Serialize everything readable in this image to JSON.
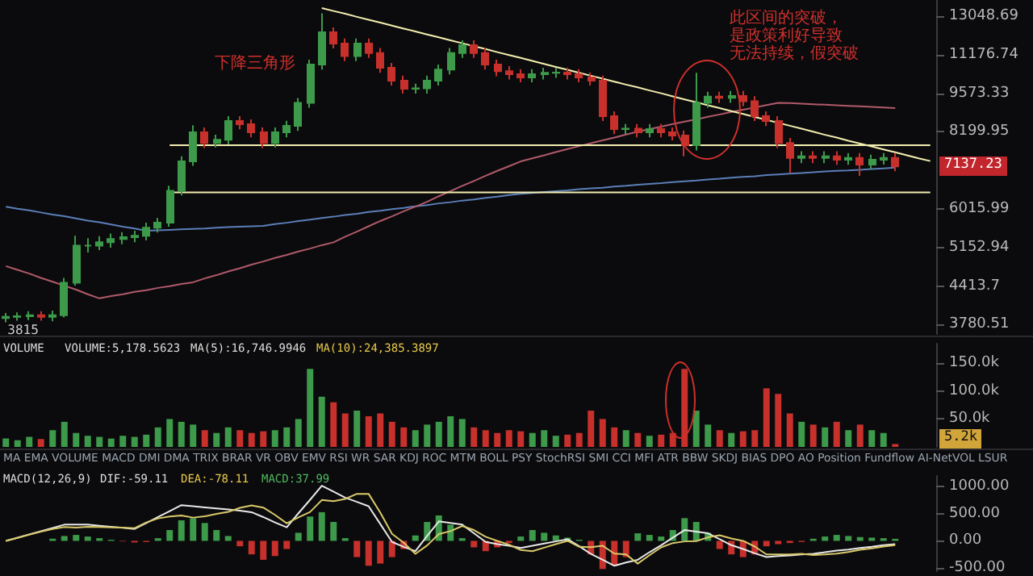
{
  "chart_data": [
    {
      "type": "candlestick",
      "log": "y",
      "tick_labels": "y",
      "categories": [
        null,
        null,
        null,
        null,
        null,
        null,
        null,
        null,
        null,
        null,
        null,
        null,
        null,
        null,
        null,
        null,
        null,
        null,
        null,
        null,
        null,
        null,
        null,
        null,
        null,
        null,
        null,
        null,
        null,
        null,
        null,
        null,
        null,
        null,
        null,
        null,
        null,
        null,
        null,
        null,
        null,
        null,
        null,
        null,
        null,
        null,
        null,
        null,
        null,
        null,
        null,
        null,
        null,
        null,
        null,
        null,
        null,
        null,
        null,
        null,
        null,
        null,
        null,
        null,
        null,
        null,
        null,
        null,
        null,
        null,
        null,
        null,
        null,
        null,
        null,
        null,
        null,
        null,
        null,
        null
      ],
      "colors": [
        "#3d9a4a",
        "#3d9a4a",
        "#3d9a4a",
        "#c8302c",
        "#3d9a4a",
        "#3d9a4a",
        "#3d9a4a",
        "#3d9a4a",
        "#3d9a4a",
        "#3d9a4a",
        "#3d9a4a",
        "#3d9a4a",
        "#3d9a4a",
        "#3d9a4a",
        "#3d9a4a",
        "#3d9a4a",
        "#3d9a4a",
        "#c8302c",
        "#3d9a4a",
        "#3d9a4a",
        "#c8302c",
        "#c8302c",
        "#c8302c",
        "#3d9a4a",
        "#3d9a4a",
        "#3d9a4a",
        "#3d9a4a",
        "#3d9a4a",
        "#c8302c",
        "#c8302c",
        "#3d9a4a",
        "#c8302c",
        "#c8302c",
        "#c8302c",
        "#c8302c",
        "#3d9a4a",
        "#3d9a4a",
        "#3d9a4a",
        "#3d9a4a",
        "#3d9a4a",
        "#c8302c",
        "#c8302c",
        "#c8302c",
        "#c8302c",
        "#c8302c",
        "#3d9a4a",
        "#3d9a4a",
        "#3d9a4a",
        "#c8302c",
        "#c8302c",
        "#c8302c",
        "#c8302c",
        "#c8302c",
        "#3d9a4a",
        "#c8302c",
        "#3d9a4a",
        "#c8302c",
        "#c8302c",
        "#c8302c",
        "#3d9a4a",
        "#3d9a4a",
        "#c8302c",
        "#3d9a4a",
        "#c8302c",
        "#c8302c",
        "#c8302c",
        "#c8302c",
        "#c8302c",
        "#3d9a4a",
        "#c8302c",
        "#3d9a4a",
        "#c8302c",
        "#3d9a4a",
        "#c8302c",
        "#3d9a4a",
        "#3d9a4a",
        "#c8302c",
        null,
        null,
        null
      ],
      "ohlc": [
        [
          3880,
          3960,
          3815,
          3900
        ],
        [
          3900,
          3970,
          3840,
          3910
        ],
        [
          3910,
          3990,
          3850,
          3925
        ],
        [
          3925,
          3990,
          3840,
          3900
        ],
        [
          3900,
          4000,
          3830,
          3925
        ],
        [
          3925,
          4560,
          3890,
          4470
        ],
        [
          4470,
          5400,
          4420,
          5190
        ],
        [
          5190,
          5350,
          5050,
          5190
        ],
        [
          5190,
          5390,
          5100,
          5260
        ],
        [
          5260,
          5450,
          5150,
          5330
        ],
        [
          5330,
          5480,
          5220,
          5370
        ],
        [
          5370,
          5510,
          5260,
          5400
        ],
        [
          5400,
          5690,
          5300,
          5580
        ],
        [
          5580,
          5800,
          5470,
          5690
        ],
        [
          5690,
          6600,
          5600,
          6470
        ],
        [
          6470,
          7430,
          6350,
          7280
        ],
        [
          7280,
          8420,
          7150,
          8180
        ],
        [
          8180,
          8340,
          7680,
          7840
        ],
        [
          7840,
          8100,
          7700,
          7940
        ],
        [
          7940,
          8730,
          7800,
          8560
        ],
        [
          8560,
          8730,
          8280,
          8450
        ],
        [
          8450,
          8620,
          8020,
          8180
        ],
        [
          8180,
          8340,
          7680,
          7840
        ],
        [
          7840,
          8340,
          7700,
          8180
        ],
        [
          8180,
          8570,
          8020,
          8400
        ],
        [
          8400,
          9390,
          8230,
          9210
        ],
        [
          9210,
          10950,
          9030,
          10740
        ],
        [
          10740,
          13200,
          10530,
          12230
        ],
        [
          12230,
          12470,
          11460,
          11690
        ],
        [
          11690,
          11920,
          10890,
          11110
        ],
        [
          11110,
          11920,
          10890,
          11690
        ],
        [
          11690,
          11920,
          11030,
          11250
        ],
        [
          11250,
          11480,
          10390,
          10600
        ],
        [
          10600,
          10810,
          9870,
          10070
        ],
        [
          10070,
          10270,
          9560,
          9750
        ],
        [
          9750,
          9950,
          9560,
          9760
        ],
        [
          9760,
          10270,
          9560,
          10070
        ],
        [
          10070,
          10740,
          9870,
          10530
        ],
        [
          10530,
          11480,
          10320,
          11250
        ],
        [
          11250,
          11840,
          11030,
          11610
        ],
        [
          11610,
          11840,
          11030,
          11250
        ],
        [
          11250,
          11480,
          10530,
          10740
        ],
        [
          10740,
          10950,
          10250,
          10460
        ],
        [
          10460,
          10670,
          10120,
          10330
        ],
        [
          10330,
          10540,
          10000,
          10200
        ],
        [
          10200,
          10540,
          10000,
          10330
        ],
        [
          10330,
          10600,
          10120,
          10390
        ],
        [
          10390,
          10600,
          10180,
          10400
        ],
        [
          10400,
          10600,
          10120,
          10330
        ],
        [
          10330,
          10540,
          10000,
          10200
        ],
        [
          10200,
          10400,
          9870,
          10070
        ],
        [
          10070,
          10270,
          8560,
          8730
        ],
        [
          8730,
          8900,
          8120,
          8290
        ],
        [
          8290,
          8460,
          8120,
          8300
        ],
        [
          8300,
          8460,
          8020,
          8180
        ],
        [
          8180,
          8460,
          8020,
          8290
        ],
        [
          8290,
          8460,
          8020,
          8180
        ],
        [
          8180,
          8340,
          7920,
          8080
        ],
        [
          8080,
          8240,
          7430,
          7770
        ],
        [
          7770,
          10390,
          7610,
          9210
        ],
        [
          9210,
          9630,
          9030,
          9440
        ],
        [
          9440,
          9630,
          9210,
          9400
        ],
        [
          9400,
          9660,
          9210,
          9470
        ],
        [
          9470,
          9660,
          9080,
          9270
        ],
        [
          9270,
          9460,
          8560,
          8730
        ],
        [
          8730,
          8900,
          8390,
          8560
        ],
        [
          8560,
          8730,
          7680,
          7840
        ],
        [
          7840,
          8000,
          6950,
          7380
        ],
        [
          7380,
          7580,
          7230,
          7430
        ],
        [
          7430,
          7580,
          7230,
          7380
        ],
        [
          7380,
          7580,
          7230,
          7430
        ],
        [
          7430,
          7580,
          7180,
          7330
        ],
        [
          7330,
          7530,
          7180,
          7380
        ],
        [
          7380,
          7530,
          6870,
          7190
        ],
        [
          7190,
          7480,
          7050,
          7330
        ],
        [
          7330,
          7530,
          7190,
          7380
        ],
        [
          7380,
          7530,
          7000,
          7137
        ],
        null,
        null,
        null
      ],
      "series": [
        {
          "type": "line",
          "color": "#5b7fb8",
          "values": [
            6070,
            6020,
            5980,
            5930,
            5880,
            5840,
            5790,
            5740,
            5700,
            5650,
            5600,
            5560,
            5510,
            5520,
            5530,
            5540,
            5550,
            5560,
            5580,
            5590,
            5600,
            5610,
            5620,
            5660,
            5690,
            5730,
            5760,
            5800,
            5830,
            5870,
            5900,
            5940,
            5970,
            6010,
            6040,
            6080,
            6110,
            6150,
            6180,
            6220,
            6250,
            6290,
            6320,
            6360,
            6390,
            6410,
            6440,
            6460,
            6480,
            6510,
            6530,
            6550,
            6580,
            6600,
            6630,
            6650,
            6670,
            6700,
            6720,
            6740,
            6770,
            6790,
            6820,
            6840,
            6860,
            6890,
            6910,
            6930,
            6950,
            6970,
            6990,
            7010,
            7020,
            7040,
            7060,
            7080,
            7100,
            null,
            null,
            null
          ]
        },
        {
          "type": "line",
          "color": "#b05a6a",
          "values": [
            4780,
            4710,
            4640,
            4560,
            4490,
            4420,
            4350,
            4270,
            4200,
            4240,
            4270,
            4310,
            4340,
            4380,
            4410,
            4450,
            4480,
            4550,
            4610,
            4680,
            4740,
            4810,
            4870,
            4940,
            5000,
            5070,
            5130,
            5200,
            5260,
            5380,
            5490,
            5610,
            5730,
            5840,
            5960,
            6070,
            6190,
            6330,
            6460,
            6600,
            6730,
            6870,
            7010,
            7140,
            7280,
            7370,
            7460,
            7560,
            7650,
            7740,
            7830,
            7920,
            8010,
            8110,
            8200,
            8290,
            8370,
            8460,
            8540,
            8620,
            8710,
            8790,
            8880,
            8960,
            9040,
            9130,
            9210,
            9200,
            9180,
            9160,
            9140,
            9120,
            9100,
            9080,
            9060,
            9040,
            9020,
            null,
            null,
            null
          ]
        },
        {
          "type": "line",
          "color": "#f3eeb0",
          "values": [
            null,
            null,
            null,
            null,
            null,
            null,
            null,
            null,
            null,
            null,
            null,
            null,
            null,
            null,
            null,
            null,
            null,
            null,
            null,
            null,
            null,
            null,
            null,
            null,
            null,
            null,
            null,
            13480,
            13320,
            13170,
            13010,
            12860,
            12710,
            12560,
            12410,
            12270,
            12120,
            11980,
            11840,
            11700,
            11560,
            11430,
            11290,
            11160,
            11030,
            10900,
            10770,
            10640,
            10520,
            10390,
            10270,
            10150,
            10030,
            9910,
            9800,
            9680,
            9570,
            9450,
            9340,
            9230,
            9120,
            9020,
            8910,
            8810,
            8700,
            8600,
            8500,
            8400,
            8300,
            8200,
            8100,
            8010,
            7910,
            7820,
            7730,
            7640,
            7550,
            7460,
            7370,
            7290
          ]
        },
        {
          "type": "line",
          "color": "#f3eeb0",
          "values": [
            null,
            null,
            null,
            null,
            null,
            null,
            null,
            null,
            null,
            null,
            null,
            null,
            null,
            null,
            7770,
            7770,
            7770,
            7770,
            7770,
            7770,
            7770,
            7770,
            7770,
            7770,
            7770,
            7770,
            7770,
            7770,
            7770,
            7770,
            7770,
            7770,
            7770,
            7770,
            7770,
            7770,
            7770,
            7770,
            7770,
            7770,
            7770,
            7770,
            7770,
            7770,
            7770,
            7770,
            7770,
            7770,
            7770,
            7770,
            7770,
            7770,
            7770,
            7770,
            7770,
            7770,
            7770,
            7770,
            7770,
            7770,
            7770,
            7770,
            7770,
            7770,
            7770,
            7770,
            7770,
            7770,
            7770,
            7770,
            7770,
            7770,
            7770,
            7770,
            7770,
            7770,
            7770,
            7770,
            7770,
            7770
          ]
        },
        {
          "type": "line",
          "color": "#f3eeb0",
          "values": [
            null,
            null,
            null,
            null,
            null,
            null,
            null,
            null,
            null,
            null,
            null,
            null,
            null,
            null,
            6430,
            6430,
            6430,
            6430,
            6430,
            6430,
            6430,
            6430,
            6430,
            6430,
            6430,
            6430,
            6430,
            6430,
            6430,
            6430,
            6430,
            6430,
            6430,
            6430,
            6430,
            6430,
            6430,
            6430,
            6430,
            6430,
            6430,
            6430,
            6430,
            6430,
            6430,
            6430,
            6430,
            6430,
            6430,
            6430,
            6430,
            6430,
            6430,
            6430,
            6430,
            6430,
            6430,
            6430,
            6430,
            6430,
            6430,
            6430,
            6430,
            6430,
            6430,
            6430,
            6430,
            6430,
            6430,
            6430,
            6430,
            6430,
            6430,
            6430,
            6430,
            6430,
            6430,
            6430,
            6430,
            6430
          ]
        }
      ],
      "ylim": [
        3640,
        13920
      ],
      "yticks": [
        3780.51,
        4413.7,
        5152.94,
        6015.99,
        8199.95,
        9573.33,
        11176.74,
        13048.69
      ],
      "annotations": [
        "下降三角形",
        "此区间的突破，",
        "是政策利好导致",
        "无法持续，假突破",
        {
          "text": "3815",
          "y": 3815
        },
        "7137.23"
      ]
    },
    {
      "type": "bar",
      "tick_labels": "y",
      "categories": [
        null,
        null,
        null,
        null,
        null,
        null,
        null,
        null,
        null,
        null,
        null,
        null,
        null,
        null,
        null,
        null,
        null,
        null,
        null,
        null,
        null,
        null,
        null,
        null,
        null,
        null,
        null,
        null,
        null,
        null,
        null,
        null,
        null,
        null,
        null,
        null,
        null,
        null,
        null,
        null,
        null,
        null,
        null,
        null,
        null,
        null,
        null,
        null,
        null,
        null,
        null,
        null,
        null,
        null,
        null,
        null,
        null,
        null,
        null,
        null,
        null,
        null,
        null,
        null,
        null,
        null,
        null,
        null,
        null,
        null,
        null,
        null,
        null,
        null,
        null,
        null,
        null,
        null,
        null,
        null
      ],
      "values": [
        15,
        12,
        18,
        14,
        30,
        45,
        25,
        20,
        18,
        15,
        20,
        18,
        22,
        35,
        50,
        45,
        40,
        30,
        25,
        35,
        30,
        25,
        28,
        30,
        35,
        50,
        140,
        90,
        80,
        60,
        65,
        55,
        60,
        45,
        35,
        30,
        40,
        45,
        55,
        50,
        35,
        30,
        25,
        30,
        28,
        25,
        30,
        20,
        22,
        25,
        65,
        50,
        35,
        30,
        25,
        20,
        22,
        25,
        140,
        65,
        40,
        30,
        25,
        28,
        30,
        105,
        95,
        60,
        45,
        40,
        35,
        45,
        30,
        40,
        30,
        25,
        5.2,
        null,
        null,
        null
      ],
      "colors": [
        "#3d9a4a",
        "#3d9a4a",
        "#3d9a4a",
        "#c8302c",
        "#3d9a4a",
        "#3d9a4a",
        "#3d9a4a",
        "#3d9a4a",
        "#3d9a4a",
        "#3d9a4a",
        "#3d9a4a",
        "#3d9a4a",
        "#3d9a4a",
        "#3d9a4a",
        "#3d9a4a",
        "#3d9a4a",
        "#3d9a4a",
        "#c8302c",
        "#3d9a4a",
        "#3d9a4a",
        "#c8302c",
        "#c8302c",
        "#c8302c",
        "#3d9a4a",
        "#3d9a4a",
        "#3d9a4a",
        "#3d9a4a",
        "#3d9a4a",
        "#c8302c",
        "#c8302c",
        "#3d9a4a",
        "#c8302c",
        "#c8302c",
        "#c8302c",
        "#c8302c",
        "#3d9a4a",
        "#3d9a4a",
        "#3d9a4a",
        "#3d9a4a",
        "#3d9a4a",
        "#c8302c",
        "#c8302c",
        "#c8302c",
        "#c8302c",
        "#c8302c",
        "#3d9a4a",
        "#3d9a4a",
        "#3d9a4a",
        "#c8302c",
        "#c8302c",
        "#c8302c",
        "#c8302c",
        "#c8302c",
        "#3d9a4a",
        "#c8302c",
        "#3d9a4a",
        "#c8302c",
        "#c8302c",
        "#c8302c",
        "#3d9a4a",
        "#3d9a4a",
        "#c8302c",
        "#3d9a4a",
        "#c8302c",
        "#c8302c",
        "#c8302c",
        "#c8302c",
        "#c8302c",
        "#3d9a4a",
        "#c8302c",
        "#3d9a4a",
        "#c8302c",
        "#3d9a4a",
        "#c8302c",
        "#3d9a4a",
        "#3d9a4a",
        "#c8302c",
        null,
        null,
        null
      ],
      "ylim": [
        0,
        185
      ],
      "yticks": [
        {
          "value": 50,
          "label": "50.0k"
        },
        {
          "value": 100,
          "label": "100.0k"
        },
        {
          "value": 150,
          "label": "150.0k"
        }
      ],
      "annotations": [
        "VOLUME",
        "VOLUME:5,178.5623",
        "MA(5):16,746.9946",
        "MA(10):24,385.3897",
        "5.2k"
      ]
    },
    {
      "type": "bar",
      "tick_labels": "y",
      "categories": [
        null,
        null,
        null,
        null,
        null,
        null,
        null,
        null,
        null,
        null,
        null,
        null,
        null,
        null,
        null,
        null,
        null,
        null,
        null,
        null,
        null,
        null,
        null,
        null,
        null,
        null,
        null,
        null,
        null,
        null,
        null,
        null,
        null,
        null,
        null,
        null,
        null,
        null,
        null,
        null,
        null,
        null,
        null,
        null,
        null,
        null,
        null,
        null,
        null,
        null,
        null,
        null,
        null,
        null,
        null,
        null,
        null,
        null,
        null,
        null,
        null,
        null,
        null,
        null,
        null,
        null,
        null,
        null,
        null,
        null,
        null,
        null,
        null,
        null,
        null,
        null,
        null,
        null,
        null,
        null
      ],
      "series": [
        {
          "type": "bar",
          "values": [
            null,
            null,
            null,
            null,
            40,
            90,
            110,
            80,
            50,
            20,
            -10,
            -30,
            -20,
            50,
            200,
            380,
            420,
            330,
            200,
            90,
            -100,
            -250,
            -350,
            -280,
            -150,
            150,
            450,
            530,
            350,
            50,
            -300,
            -460,
            -420,
            -300,
            -150,
            100,
            350,
            470,
            300,
            50,
            -120,
            -190,
            -120,
            -40,
            80,
            200,
            150,
            100,
            60,
            20,
            -250,
            -520,
            -450,
            -300,
            140,
            110,
            80,
            200,
            420,
            350,
            150,
            -150,
            -250,
            -300,
            -250,
            -100,
            -60,
            -40,
            -20,
            40,
            80,
            110,
            90,
            70,
            60,
            50,
            37.99,
            null,
            null,
            null
          ],
          "colors": [
            "#3d9a4a",
            "#3d9a4a",
            "#3d9a4a",
            "#3d9a4a",
            "#3d9a4a",
            "#3d9a4a",
            "#3d9a4a",
            "#3d9a4a",
            "#3d9a4a",
            "#3d9a4a",
            "#c8302c",
            "#c8302c",
            "#c8302c",
            "#3d9a4a",
            "#3d9a4a",
            "#3d9a4a",
            "#3d9a4a",
            "#3d9a4a",
            "#3d9a4a",
            "#3d9a4a",
            "#c8302c",
            "#c8302c",
            "#c8302c",
            "#c8302c",
            "#c8302c",
            "#3d9a4a",
            "#3d9a4a",
            "#3d9a4a",
            "#3d9a4a",
            "#3d9a4a",
            "#c8302c",
            "#c8302c",
            "#c8302c",
            "#c8302c",
            "#c8302c",
            "#3d9a4a",
            "#3d9a4a",
            "#3d9a4a",
            "#3d9a4a",
            "#3d9a4a",
            "#c8302c",
            "#c8302c",
            "#c8302c",
            "#c8302c",
            "#3d9a4a",
            "#3d9a4a",
            "#3d9a4a",
            "#3d9a4a",
            "#3d9a4a",
            "#3d9a4a",
            "#c8302c",
            "#c8302c",
            "#c8302c",
            "#c8302c",
            "#3d9a4a",
            "#3d9a4a",
            "#3d9a4a",
            "#3d9a4a",
            "#3d9a4a",
            "#3d9a4a",
            "#3d9a4a",
            "#c8302c",
            "#c8302c",
            "#c8302c",
            "#c8302c",
            "#c8302c",
            "#c8302c",
            "#c8302c",
            "#c8302c",
            "#3d9a4a",
            "#3d9a4a",
            "#3d9a4a",
            "#3d9a4a",
            "#3d9a4a",
            "#3d9a4a",
            "#3d9a4a",
            "#3d9a4a",
            null,
            null,
            null
          ]
        },
        {
          "type": "line",
          "color": "#e8e8e8",
          "values": [
            0,
            60,
            120,
            180,
            240,
            300,
            300,
            300,
            280,
            260,
            240,
            220,
            330,
            440,
            550,
            660,
            640,
            620,
            600,
            580,
            560,
            530,
            440,
            340,
            250,
            510,
            760,
            1020,
            910,
            800,
            720,
            640,
            310,
            -20,
            -110,
            -190,
            90,
            360,
            330,
            300,
            140,
            -20,
            -60,
            -90,
            -130,
            -90,
            -50,
            -10,
            30,
            -100,
            -240,
            -350,
            -460,
            -400,
            -350,
            -210,
            -80,
            60,
            200,
            170,
            140,
            30,
            -80,
            -150,
            -230,
            -300,
            -280,
            -270,
            -250,
            -240,
            -210,
            -180,
            -160,
            -130,
            -110,
            -80,
            -59.11,
            null,
            null,
            null
          ]
        },
        {
          "type": "line",
          "color": "#d9c96a",
          "values": [
            -2,
            55,
            115,
            172,
            220,
            255,
            245,
            260,
            255,
            250,
            245,
            235,
            340,
            415,
            450,
            470,
            430,
            455,
            500,
            535,
            610,
            655,
            615,
            480,
            325,
            435,
            535,
            755,
            735,
            775,
            870,
            870,
            520,
            130,
            -35,
            -240,
            -85,
            125,
            180,
            275,
            200,
            75,
            0,
            -70,
            -170,
            -190,
            -125,
            -60,
            0,
            -110,
            -115,
            -90,
            -235,
            -250,
            -420,
            -265,
            -120,
            -40,
            -10,
            -5,
            65,
            105,
            45,
            0,
            -105,
            -250,
            -250,
            -250,
            -240,
            -260,
            -250,
            -235,
            -205,
            -165,
            -140,
            -105,
            -78.11,
            null,
            null,
            null
          ]
        }
      ],
      "ylim": [
        -560,
        1200
      ],
      "yticks": [
        {
          "value": -500,
          "label": "-500.00"
        },
        {
          "value": 0,
          "label": "0.00"
        },
        {
          "value": 500,
          "label": "500.00"
        },
        {
          "value": 1000,
          "label": "1000.00"
        }
      ],
      "annotations": [
        "MA EMA VOLUME MACD DMI DMA TRIX BRAR VR OBV EMV RSI WR SAR KDJ ROC MTM BOLL PSY StochRSI SMI CCI MFI ATR BBW SKDJ BIAS DPO AO Position Fundflow AI-NetVOL LSUR",
        "MACD(12,26,9)",
        "DIF:-59.11",
        "DEA:-78.11",
        "MACD:37.99"
      ]
    }
  ]
}
